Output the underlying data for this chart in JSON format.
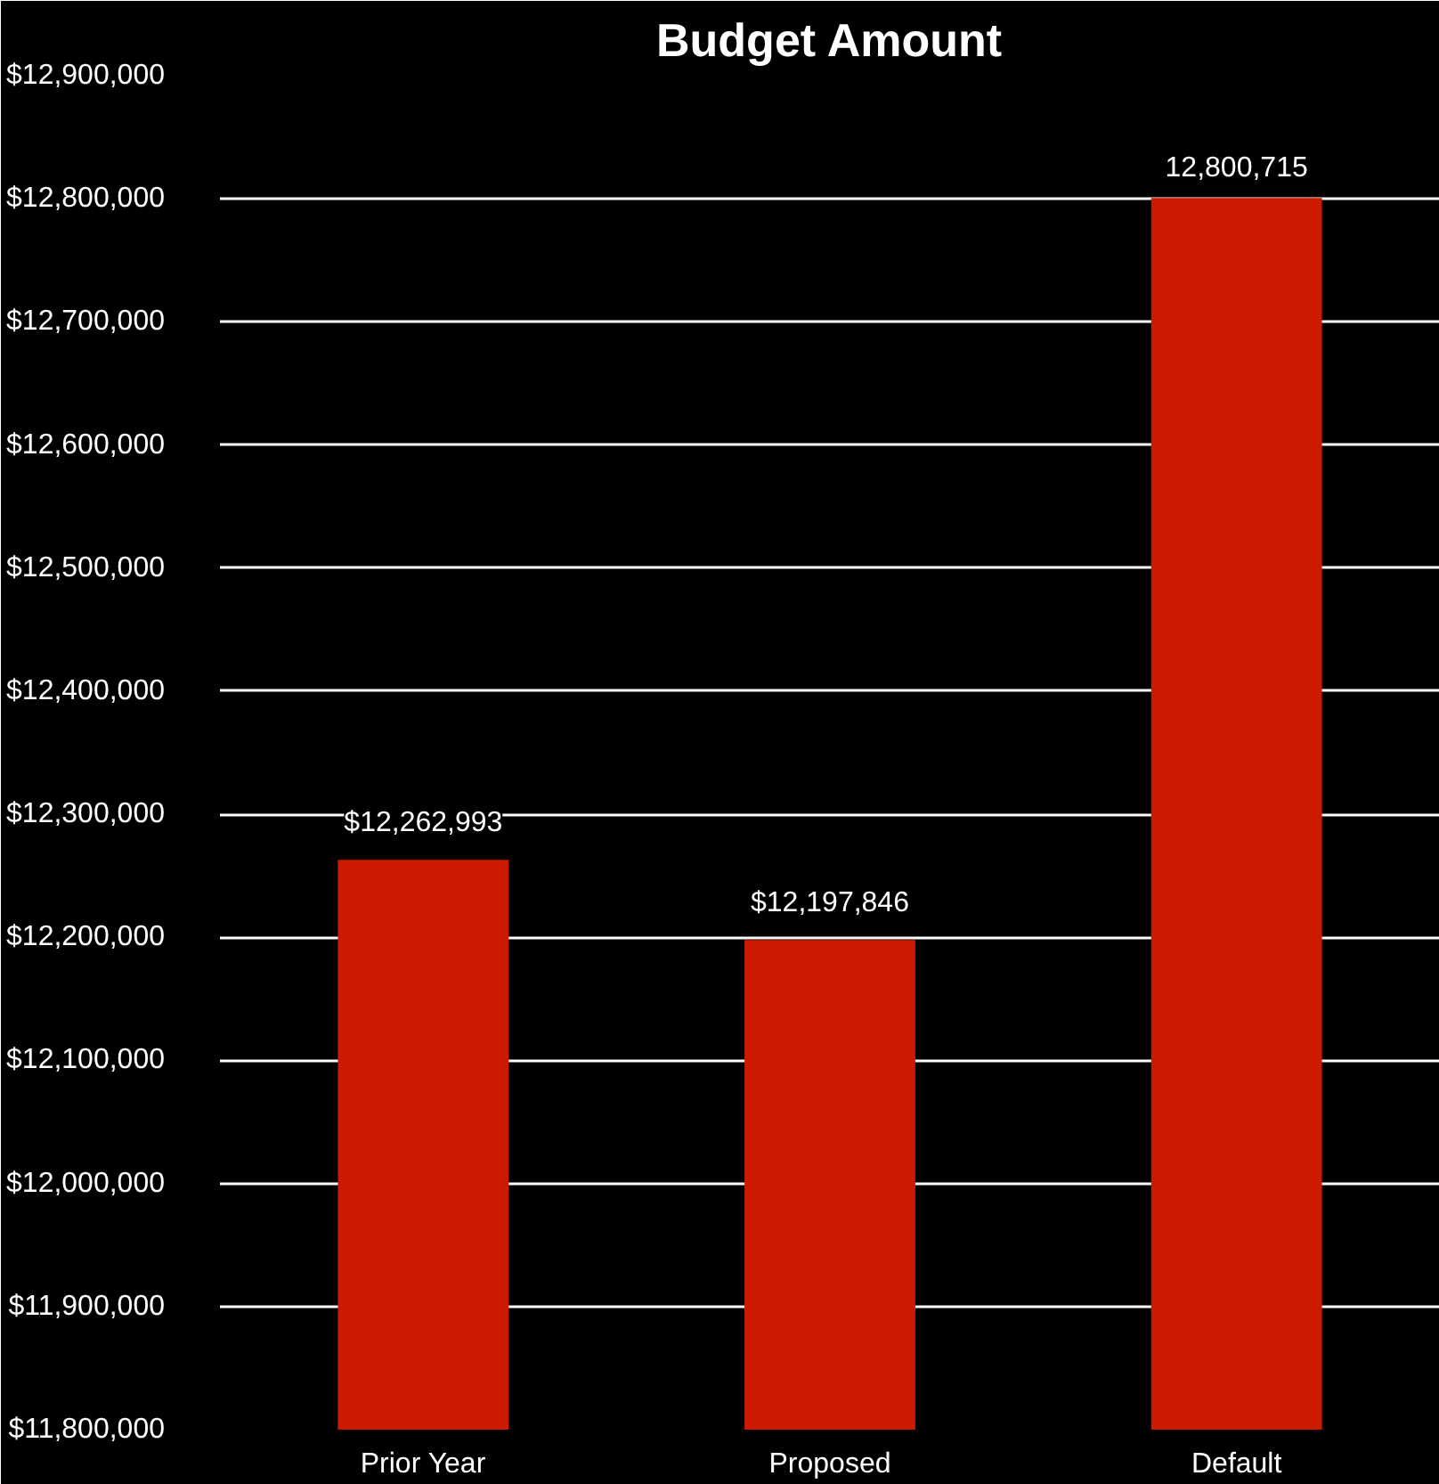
{
  "chart_data": {
    "type": "bar",
    "title": "Budget Amount",
    "categories": [
      "Prior Year",
      "Proposed",
      "Default"
    ],
    "values": [
      12262993,
      12197846,
      12800715
    ],
    "color": "#cc1a00",
    "value_labels": [
      "$12,262,993",
      "$12,197,846",
      "12,800,715"
    ],
    "ylim": [
      11800000,
      12900000
    ],
    "yticks": [
      {
        "value": 11800000,
        "label": "$11,800,000"
      },
      {
        "value": 11900000,
        "label": "$11,900,000"
      },
      {
        "value": 12000000,
        "label": "$12,000,000"
      },
      {
        "value": 12100000,
        "label": "$12,100,000"
      },
      {
        "value": 12200000,
        "label": "$12,200,000"
      },
      {
        "value": 12300000,
        "label": "$12,300,000"
      },
      {
        "value": 12400000,
        "label": "$12,400,000"
      },
      {
        "value": 12500000,
        "label": "$12,500,000"
      },
      {
        "value": 12600000,
        "label": "$12,600,000"
      },
      {
        "value": 12700000,
        "label": "$12,700,000"
      },
      {
        "value": 12800000,
        "label": "$12,800,000"
      },
      {
        "value": 12900000,
        "label": "$12,900,000"
      }
    ],
    "grid": "y"
  }
}
